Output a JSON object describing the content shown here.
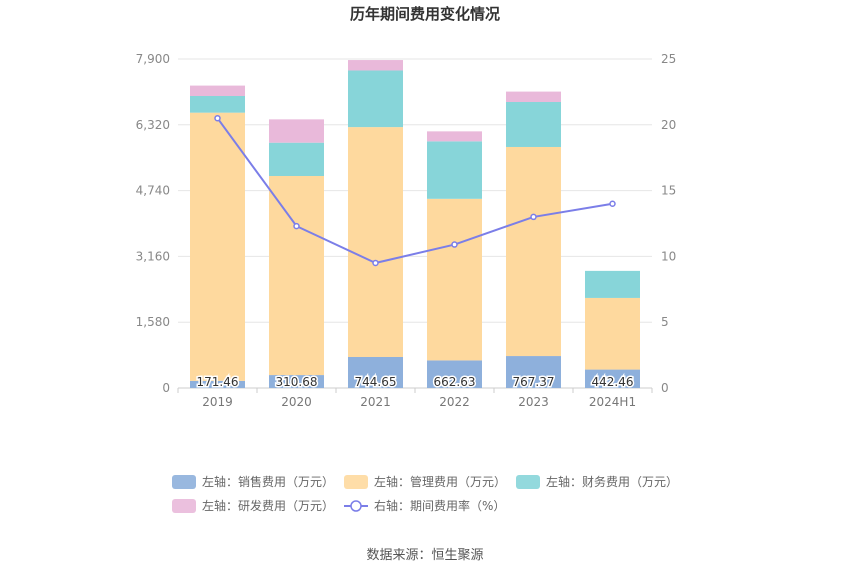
{
  "chart_data": {
    "type": "bar",
    "title": "历年期间费用变化情况",
    "categories": [
      "2019",
      "2020",
      "2021",
      "2022",
      "2023",
      "2024H1"
    ],
    "left_axis": {
      "min": 0,
      "max": 7900,
      "ticks": [
        "0",
        "1,580",
        "3,160",
        "4,740",
        "6,320",
        "7,900"
      ],
      "tick_values": [
        0,
        1580,
        3160,
        4740,
        6320,
        7900
      ]
    },
    "right_axis": {
      "min": 0,
      "max": 25,
      "ticks": [
        "0",
        "5",
        "10",
        "15",
        "20",
        "25"
      ],
      "tick_values": [
        0,
        5,
        10,
        15,
        20,
        25
      ]
    },
    "series": [
      {
        "name": "左轴：销售费用（万元）",
        "kind": "bar",
        "color": "#8eb0dc",
        "values": [
          171.46,
          310.68,
          744.65,
          662.63,
          767.37,
          442.46
        ],
        "labels": [
          "171.46",
          "310.68",
          "744.65",
          "662.63",
          "767.37",
          "442.46"
        ]
      },
      {
        "name": "左轴：管理费用（万元）",
        "kind": "bar",
        "color": "#fed99e",
        "values": [
          6440,
          4780,
          5520,
          3880,
          5020,
          1720
        ]
      },
      {
        "name": "左轴：财务费用（万元）",
        "kind": "bar",
        "color": "#87d5d9",
        "values": [
          400,
          800,
          1360,
          1380,
          1080,
          650
        ]
      },
      {
        "name": "左轴：研发费用（万元）",
        "kind": "bar",
        "color": "#e9b9da",
        "values": [
          250,
          560,
          250,
          240,
          250,
          0
        ]
      },
      {
        "name": "右轴：期间费用率（%）",
        "kind": "line",
        "color": "#7b7ee8",
        "values": [
          20.5,
          12.3,
          9.5,
          10.9,
          13.0,
          14.0
        ]
      }
    ],
    "legend_placement": "bottom",
    "grid": true
  },
  "source": "数据来源：恒生聚源"
}
